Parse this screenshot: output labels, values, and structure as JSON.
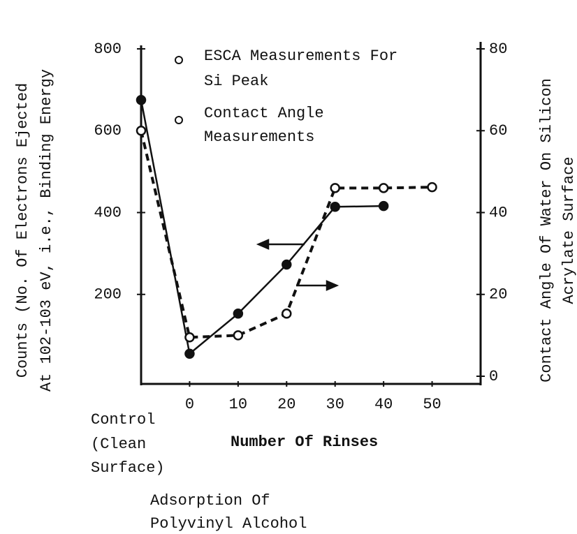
{
  "chart_data": {
    "type": "line",
    "y_label": [
      "Counts (No. Of Electrons Ejected",
      "At 102-103 eV, i.e., Binding Energy"
    ],
    "y2_label": [
      "Contact Angle Of Water On Silicon",
      "Acrylate Surface"
    ],
    "x_label": "Number Of Rinses",
    "annotations": {
      "control": [
        "Control",
        "(Clean",
        "Surface)"
      ],
      "adsorption": [
        "Adsorption Of",
        "Polyvinyl Alcohol"
      ]
    },
    "xlim": [
      -10,
      60
    ],
    "xticks": [
      0,
      10,
      20,
      30,
      40,
      50
    ],
    "ylim": [
      0,
      800
    ],
    "yticks": [
      200,
      400,
      600,
      800
    ],
    "y2lim": [
      0,
      80
    ],
    "y2ticks": [
      0,
      20,
      40,
      60,
      80
    ],
    "series": [
      {
        "name": [
          "ESCA Measurements For",
          "Si Peak"
        ],
        "color": "#111111",
        "dash": false,
        "x": [
          -10,
          0,
          10,
          20,
          30,
          40
        ],
        "values": [
          675,
          55,
          153,
          273,
          414,
          416
        ]
      },
      {
        "name": [
          "Contact Angle",
          "Measurements"
        ],
        "color": "#111111",
        "dash": true,
        "axis": "y2",
        "x": [
          -10,
          0,
          10,
          20,
          30,
          40,
          50
        ],
        "values": [
          60,
          9.5,
          10,
          15.3,
          46,
          46,
          46.2
        ]
      }
    ]
  }
}
